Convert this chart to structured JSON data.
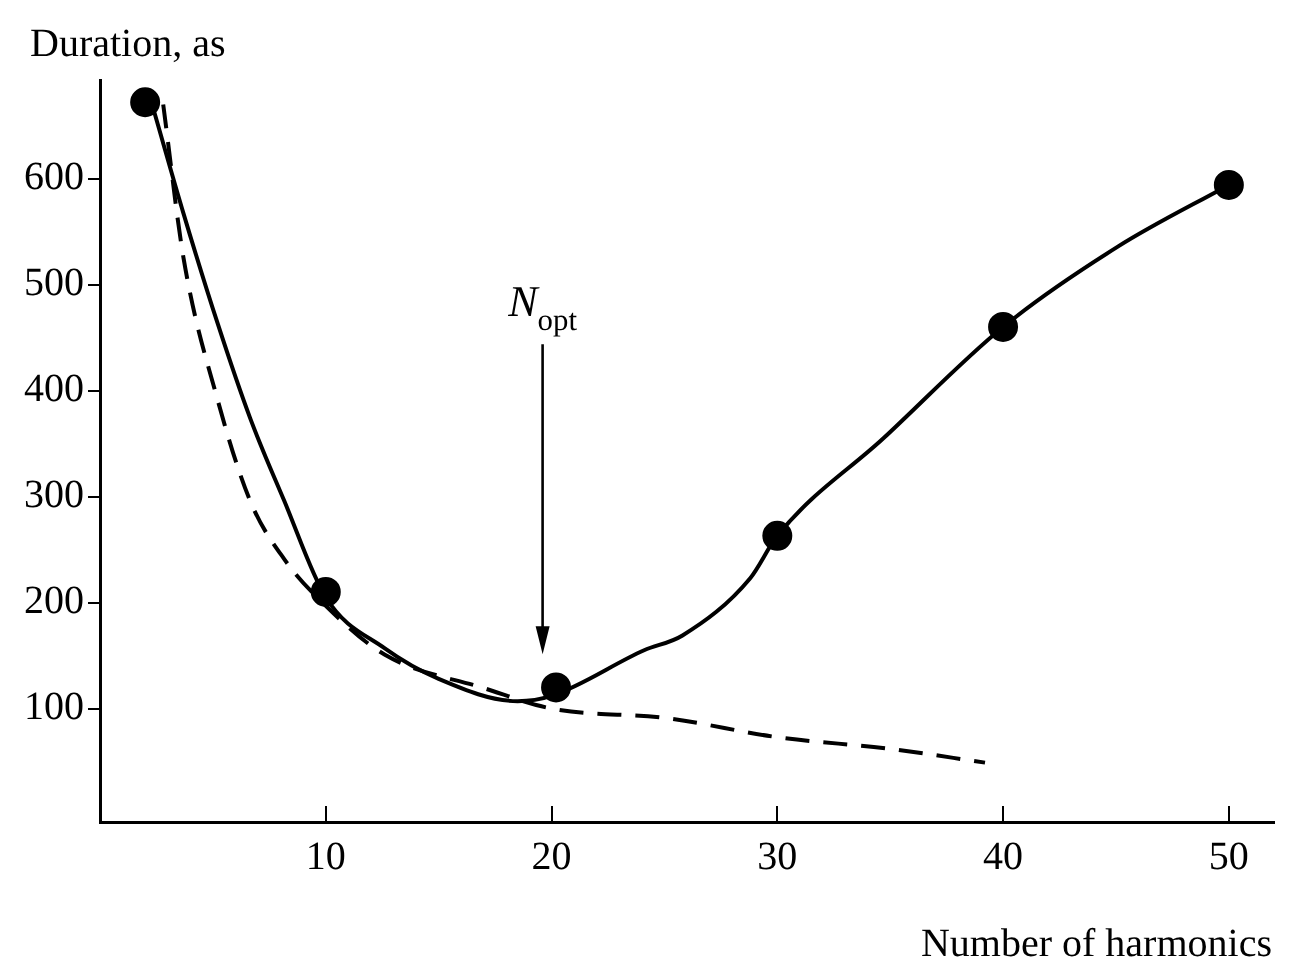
{
  "chart_data": {
    "type": "scatter",
    "xlabel": "Number of harmonics",
    "ylabel": "Duration, as",
    "xlim": [
      0,
      52
    ],
    "xticks": [
      10,
      20,
      30,
      40,
      50
    ],
    "ylim": [
      -7,
      693
    ],
    "yticks": [
      100,
      200,
      300,
      400,
      500,
      600
    ],
    "grid": false,
    "legend": false,
    "series": [
      {
        "type": "scatter",
        "color": "#000000",
        "marker": "circle",
        "x": [
          2,
          10,
          20.2,
          30,
          40,
          50
        ],
        "values": [
          672,
          210,
          120,
          263,
          460,
          594
        ]
      },
      {
        "type": "line",
        "color": "#000000",
        "marker": "none",
        "line_style": "solid",
        "x": [
          2.4,
          3.7,
          5.2,
          6.65,
          8.16,
          10,
          12.6,
          15,
          18.5,
          20,
          24.1,
          25.8,
          28.8,
          30,
          34.7,
          40,
          45.1,
          50
        ],
        "values": [
          663,
          567,
          464,
          374,
          296,
          205,
          157,
          128,
          107,
          112,
          155,
          169,
          223,
          263,
          355,
          460,
          536,
          594
        ]
      },
      {
        "type": "line",
        "color": "#000000",
        "marker": "none",
        "line_style": "dashed",
        "x": [
          2.8,
          3.7,
          5.2,
          6.65,
          8.16,
          10,
          12.6,
          17.05,
          20,
          25.1,
          30,
          35,
          39.2
        ],
        "values": [
          670,
          525,
          392,
          296,
          241,
          197,
          151,
          119,
          100,
          91,
          73,
          62,
          49
        ]
      }
    ],
    "annotations": [
      "N$_{opt}$"
    ]
  }
}
